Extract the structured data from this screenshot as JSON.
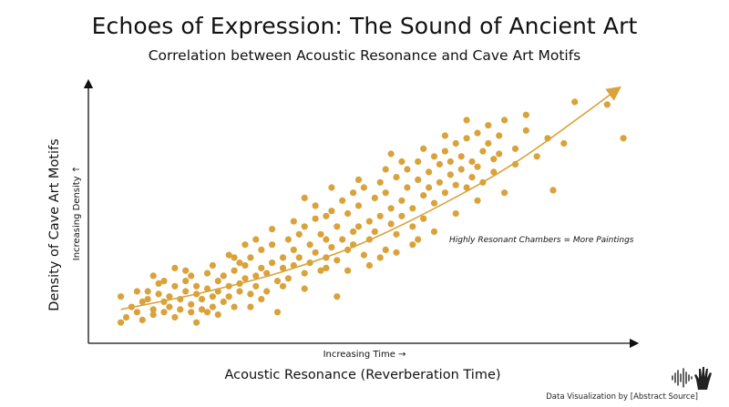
{
  "title": "Echoes of Expression: The Sound of Ancient Art",
  "subtitle": "Correlation between Acoustic Resonance and Cave Art Motifs",
  "footer": "Data Visualization by [Abstract Source]",
  "colors": {
    "points": "#d9a23a",
    "trend": "#d9a23a",
    "axis": "#111111"
  },
  "chart_data": {
    "type": "scatter",
    "title": "Echoes of Expression: The Sound of Ancient Art",
    "subtitle": "Correlation between Acoustic Resonance and Cave Art Motifs",
    "xlabel": "Acoustic Resonance (Reverberation Time)",
    "ylabel": "Density of Cave Art Motifs",
    "x_tick_note": "Increasing Time →",
    "y_tick_note": "Increasing Density ↑",
    "annotation": "Highly Resonant Chambers = More Paintings",
    "xlim": [
      0,
      100
    ],
    "ylim": [
      0,
      100
    ],
    "grid": false,
    "trendline": {
      "type": "curve",
      "direction": "increasing",
      "arrow": true,
      "points": [
        [
          6,
          13
        ],
        [
          20,
          19
        ],
        [
          35,
          27
        ],
        [
          50,
          38
        ],
        [
          65,
          53
        ],
        [
          80,
          71
        ],
        [
          98,
          98
        ]
      ]
    },
    "points": [
      [
        6,
        18
      ],
      [
        6,
        8
      ],
      [
        7,
        10
      ],
      [
        8,
        14
      ],
      [
        9,
        12
      ],
      [
        10,
        16
      ],
      [
        10,
        9
      ],
      [
        11,
        20
      ],
      [
        11,
        17
      ],
      [
        12,
        13
      ],
      [
        12,
        11
      ],
      [
        13,
        23
      ],
      [
        13,
        19
      ],
      [
        14,
        16
      ],
      [
        14,
        12
      ],
      [
        15,
        18
      ],
      [
        15,
        14
      ],
      [
        16,
        22
      ],
      [
        16,
        10
      ],
      [
        17,
        17
      ],
      [
        17,
        13
      ],
      [
        18,
        24
      ],
      [
        18,
        20
      ],
      [
        19,
        15
      ],
      [
        19,
        12
      ],
      [
        20,
        19
      ],
      [
        20,
        22
      ],
      [
        21,
        17
      ],
      [
        21,
        13
      ],
      [
        22,
        27
      ],
      [
        22,
        21
      ],
      [
        23,
        18
      ],
      [
        23,
        14
      ],
      [
        24,
        24
      ],
      [
        24,
        20
      ],
      [
        25,
        16
      ],
      [
        25,
        26
      ],
      [
        26,
        22
      ],
      [
        26,
        18
      ],
      [
        27,
        28
      ],
      [
        27,
        14
      ],
      [
        28,
        23
      ],
      [
        28,
        20
      ],
      [
        29,
        30
      ],
      [
        29,
        25
      ],
      [
        30,
        19
      ],
      [
        30,
        33
      ],
      [
        31,
        26
      ],
      [
        31,
        22
      ],
      [
        32,
        36
      ],
      [
        32,
        29
      ],
      [
        33,
        20
      ],
      [
        33,
        27
      ],
      [
        34,
        38
      ],
      [
        34,
        31
      ],
      [
        35,
        24
      ],
      [
        35,
        12
      ],
      [
        36,
        33
      ],
      [
        36,
        29
      ],
      [
        37,
        40
      ],
      [
        37,
        25
      ],
      [
        38,
        36
      ],
      [
        38,
        30
      ],
      [
        39,
        42
      ],
      [
        39,
        33
      ],
      [
        40,
        27
      ],
      [
        40,
        45
      ],
      [
        41,
        38
      ],
      [
        41,
        31
      ],
      [
        42,
        48
      ],
      [
        42,
        35
      ],
      [
        43,
        28
      ],
      [
        43,
        42
      ],
      [
        44,
        40
      ],
      [
        44,
        33
      ],
      [
        45,
        51
      ],
      [
        45,
        37
      ],
      [
        46,
        45
      ],
      [
        46,
        32
      ],
      [
        47,
        55
      ],
      [
        47,
        40
      ],
      [
        48,
        36
      ],
      [
        48,
        50
      ],
      [
        49,
        43
      ],
      [
        49,
        38
      ],
      [
        50,
        53
      ],
      [
        50,
        45
      ],
      [
        51,
        34
      ],
      [
        51,
        60
      ],
      [
        52,
        47
      ],
      [
        52,
        40
      ],
      [
        53,
        56
      ],
      [
        53,
        43
      ],
      [
        54,
        62
      ],
      [
        54,
        49
      ],
      [
        55,
        36
      ],
      [
        55,
        58
      ],
      [
        56,
        46
      ],
      [
        56,
        52
      ],
      [
        57,
        64
      ],
      [
        57,
        42
      ],
      [
        58,
        55
      ],
      [
        58,
        49
      ],
      [
        59,
        67
      ],
      [
        59,
        60
      ],
      [
        60,
        52
      ],
      [
        60,
        45
      ],
      [
        61,
        63
      ],
      [
        61,
        70
      ],
      [
        62,
        57
      ],
      [
        62,
        48
      ],
      [
        63,
        66
      ],
      [
        63,
        60
      ],
      [
        64,
        72
      ],
      [
        64,
        54
      ],
      [
        65,
        69
      ],
      [
        65,
        62
      ],
      [
        66,
        58
      ],
      [
        66,
        74
      ],
      [
        67,
        65
      ],
      [
        67,
        70
      ],
      [
        68,
        61
      ],
      [
        68,
        77
      ],
      [
        69,
        67
      ],
      [
        69,
        72
      ],
      [
        70,
        60
      ],
      [
        70,
        79
      ],
      [
        71,
        70
      ],
      [
        71,
        64
      ],
      [
        72,
        81
      ],
      [
        72,
        68
      ],
      [
        73,
        74
      ],
      [
        73,
        62
      ],
      [
        74,
        77
      ],
      [
        74,
        84
      ],
      [
        75,
        71
      ],
      [
        75,
        66
      ],
      [
        76,
        80
      ],
      [
        76,
        73
      ],
      [
        77,
        58
      ],
      [
        77,
        86
      ],
      [
        79,
        75
      ],
      [
        79,
        69
      ],
      [
        81,
        82
      ],
      [
        81,
        88
      ],
      [
        83,
        72
      ],
      [
        85,
        79
      ],
      [
        86,
        59
      ],
      [
        88,
        77
      ],
      [
        90,
        93
      ],
      [
        96,
        92
      ],
      [
        99,
        79
      ],
      [
        19,
        26
      ],
      [
        23,
        30
      ],
      [
        27,
        33
      ],
      [
        31,
        40
      ],
      [
        44,
        49
      ],
      [
        48,
        28
      ],
      [
        52,
        30
      ],
      [
        57,
        35
      ],
      [
        61,
        40
      ],
      [
        36,
        22
      ],
      [
        40,
        21
      ],
      [
        14,
        24
      ],
      [
        9,
        20
      ],
      [
        28,
        31
      ],
      [
        32,
        17
      ],
      [
        45,
        60
      ],
      [
        49,
        58
      ],
      [
        55,
        67
      ],
      [
        58,
        70
      ],
      [
        62,
        75
      ],
      [
        66,
        80
      ],
      [
        70,
        86
      ],
      [
        38,
        47
      ],
      [
        42,
        53
      ],
      [
        46,
        18
      ],
      [
        30,
        14
      ],
      [
        24,
        11
      ],
      [
        20,
        8
      ],
      [
        18,
        28
      ],
      [
        26,
        34
      ],
      [
        34,
        44
      ],
      [
        54,
        33
      ],
      [
        60,
        38
      ],
      [
        64,
        43
      ],
      [
        68,
        50
      ],
      [
        72,
        55
      ],
      [
        16,
        29
      ],
      [
        12,
        26
      ],
      [
        40,
        56
      ],
      [
        50,
        63
      ],
      [
        56,
        73
      ],
      [
        44,
        29
      ],
      [
        22,
        12
      ],
      [
        29,
        38
      ]
    ]
  }
}
